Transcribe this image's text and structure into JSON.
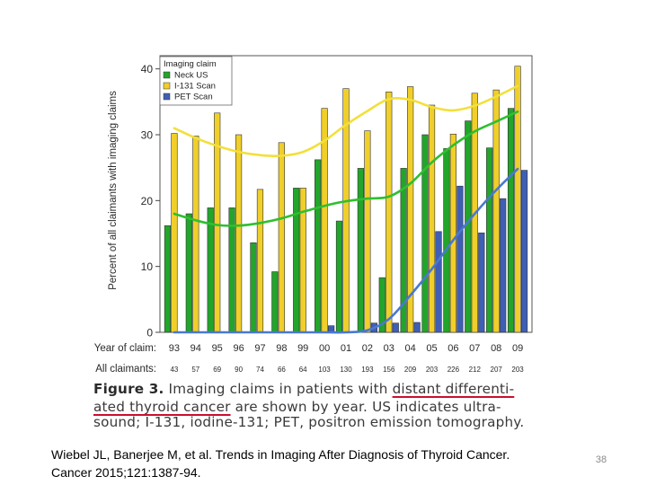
{
  "chart_data": {
    "type": "bar",
    "ylabel": "Percent of all claimants with imaging claims",
    "ylim": [
      0,
      42
    ],
    "yticks": [
      0,
      10,
      20,
      30,
      40
    ],
    "legend_title": "Imaging claim",
    "legend_position": "top-left",
    "year_row_label": "Year of claim:",
    "claimants_row_label": "All claimants:",
    "categories": [
      "93",
      "94",
      "95",
      "96",
      "97",
      "98",
      "99",
      "00",
      "01",
      "02",
      "03",
      "04",
      "05",
      "06",
      "07",
      "08",
      "09"
    ],
    "claimants": [
      "43",
      "57",
      "69",
      "90",
      "74",
      "66",
      "64",
      "103",
      "130",
      "193",
      "156",
      "209",
      "203",
      "226",
      "212",
      "207",
      "203"
    ],
    "series": [
      {
        "name": "Neck US",
        "color": "#22a52a",
        "values": [
          16.2,
          18.0,
          18.9,
          18.9,
          13.6,
          9.2,
          21.9,
          26.2,
          16.9,
          24.9,
          8.3,
          24.9,
          30.0,
          27.9,
          32.1,
          28.0,
          34.0
        ],
        "trend": [
          18.0,
          17.0,
          16.3,
          16.2,
          16.6,
          17.3,
          18.3,
          19.2,
          19.9,
          20.3,
          20.6,
          22.6,
          25.8,
          28.4,
          30.5,
          32.0,
          33.5
        ]
      },
      {
        "name": "I-131 Scan",
        "color": "#f0cf2a",
        "values": [
          30.2,
          29.8,
          33.3,
          30.0,
          21.7,
          28.8,
          21.9,
          34.0,
          37.0,
          30.6,
          36.5,
          37.3,
          34.5,
          30.1,
          36.3,
          36.8,
          40.4
        ],
        "trend": [
          31.0,
          29.5,
          28.3,
          27.4,
          26.9,
          26.8,
          27.4,
          29.1,
          31.5,
          33.6,
          35.4,
          35.3,
          34.2,
          33.7,
          34.4,
          35.8,
          37.4
        ]
      },
      {
        "name": "PET Scan",
        "color": "#3f5fb5",
        "values": [
          0,
          0,
          0,
          0,
          0,
          0,
          0,
          1.0,
          0,
          1.4,
          1.4,
          1.5,
          15.3,
          22.2,
          15.1,
          20.3,
          24.6
        ],
        "trend": [
          0,
          0,
          0,
          0,
          0,
          0,
          0,
          0,
          0,
          0.3,
          2.0,
          5.6,
          9.6,
          14.0,
          18.0,
          21.6,
          24.8
        ]
      }
    ],
    "caption": {
      "figure_label": "Figure 3.",
      "line1_text": "Imaging claims in patients with ",
      "line1_highlight": "distant differenti-",
      "line2_highlight": "ated thyroid cancer",
      "line2_text": " are shown by year. US indicates ultra-",
      "line3_text": "sound; I-131, iodine-131; PET, positron emission tomography."
    }
  },
  "citation": {
    "line1": "Wiebel JL, Banerjee M, et al. Trends in Imaging After Diagnosis of Thyroid Cancer.",
    "line2": "Cancer 2015;121:1387-94."
  },
  "page_number": "38"
}
